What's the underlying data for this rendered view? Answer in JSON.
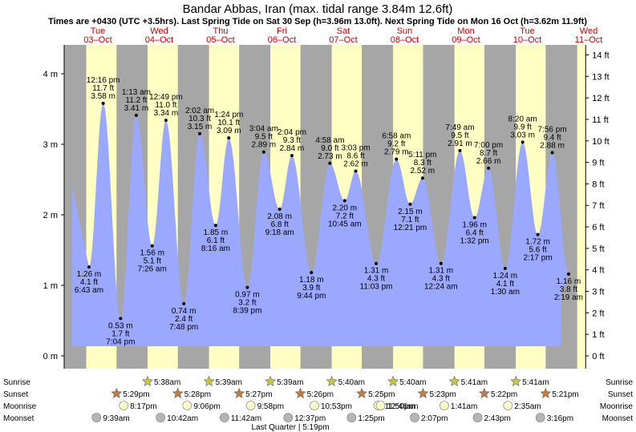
{
  "header": {
    "title": "Bandar Abbas, Iran (max. tidal range 3.84m 12.6ft)",
    "subtitle": "Times are +0430 (UTC +3.5hrs). Last Spring Tide on Sat 30 Sep (h=3.96m 13.0ft). Next Spring Tide on Mon 16 Oct (h=3.62m 11.9ft)"
  },
  "days": [
    {
      "name": "Tue",
      "date": "03–Oct"
    },
    {
      "name": "Wed",
      "date": "04–Oct"
    },
    {
      "name": "Thu",
      "date": "05–Oct"
    },
    {
      "name": "Fri",
      "date": "06–Oct"
    },
    {
      "name": "Sat",
      "date": "07–Oct"
    },
    {
      "name": "Sun",
      "date": "08–Oct"
    },
    {
      "name": "Mon",
      "date": "09–Oct"
    },
    {
      "name": "Tue",
      "date": "10–Oct"
    },
    {
      "name": "Wed",
      "date": "11–Oct"
    }
  ],
  "chart_data": {
    "type": "area",
    "title": "Bandar Abbas, Iran (max. tidal range 3.84m 12.6ft)",
    "xlabel": "",
    "ylabel": "",
    "y_left_unit": "m",
    "y_right_unit": "ft",
    "ylim_m": [
      -0.15,
      4.35
    ],
    "y_left_ticks": [
      "0 m",
      "1 m",
      "2 m",
      "3 m",
      "4 m"
    ],
    "y_right_ticks": [
      "0 ft",
      "1 ft",
      "2 ft",
      "3 ft",
      "4 ft",
      "5 ft",
      "6 ft",
      "7 ft",
      "8 ft",
      "9 ft",
      "10 ft",
      "11 ft",
      "12 ft",
      "13 ft",
      "14 ft"
    ],
    "start_height_m": 2.4,
    "end_height_m": 0.9,
    "tides": [
      {
        "day": 0,
        "time": "6:43 am",
        "h": 1.26,
        "m": "1.26 m",
        "ft": "4.1 ft"
      },
      {
        "day": 0,
        "time": "12:16 pm",
        "h": 3.58,
        "m": "3.58 m",
        "ft": "11.7 ft"
      },
      {
        "day": 0,
        "time": "7:04 pm",
        "h": 0.53,
        "m": "0.53 m",
        "ft": "1.7 ft"
      },
      {
        "day": 1,
        "time": "1:13 am",
        "h": 3.41,
        "m": "3.41 m",
        "ft": "11.2 ft"
      },
      {
        "day": 1,
        "time": "7:26 am",
        "h": 1.56,
        "m": "1.56 m",
        "ft": "5.1 ft"
      },
      {
        "day": 1,
        "time": "12:49 pm",
        "h": 3.34,
        "m": "3.34 m",
        "ft": "11.0 ft"
      },
      {
        "day": 1,
        "time": "7:48 pm",
        "h": 0.74,
        "m": "0.74 m",
        "ft": "2.4 ft"
      },
      {
        "day": 2,
        "time": "2:02 am",
        "h": 3.15,
        "m": "3.15 m",
        "ft": "10.3 ft"
      },
      {
        "day": 2,
        "time": "8:16 am",
        "h": 1.85,
        "m": "1.85 m",
        "ft": "6.1 ft"
      },
      {
        "day": 2,
        "time": "1:24 pm",
        "h": 3.09,
        "m": "3.09 m",
        "ft": "10.1 ft"
      },
      {
        "day": 2,
        "time": "8:39 pm",
        "h": 0.97,
        "m": "0.97 m",
        "ft": "3.2 ft"
      },
      {
        "day": 3,
        "time": "3:04 am",
        "h": 2.89,
        "m": "2.89 m",
        "ft": "9.5 ft"
      },
      {
        "day": 3,
        "time": "9:18 am",
        "h": 2.08,
        "m": "2.08 m",
        "ft": "6.8 ft"
      },
      {
        "day": 3,
        "time": "2:04 pm",
        "h": 2.84,
        "m": "2.84 m",
        "ft": "9.3 ft"
      },
      {
        "day": 3,
        "time": "9:44 pm",
        "h": 1.18,
        "m": "1.18 m",
        "ft": "3.9 ft"
      },
      {
        "day": 4,
        "time": "4:58 am",
        "h": 2.73,
        "m": "2.73 m",
        "ft": "9.0 ft"
      },
      {
        "day": 4,
        "time": "10:45 am",
        "h": 2.2,
        "m": "2.20 m",
        "ft": "7.2 ft"
      },
      {
        "day": 4,
        "time": "3:03 pm",
        "h": 2.62,
        "m": "2.62 m",
        "ft": "8.6 ft"
      },
      {
        "day": 4,
        "time": "11:03 pm",
        "h": 1.31,
        "m": "1.31 m",
        "ft": "4.3 ft"
      },
      {
        "day": 5,
        "time": "6:58 am",
        "h": 2.79,
        "m": "2.79 m",
        "ft": "9.2 ft"
      },
      {
        "day": 5,
        "time": "12:21 pm",
        "h": 2.15,
        "m": "2.15 m",
        "ft": "7.1 ft"
      },
      {
        "day": 5,
        "time": "5:11 pm",
        "h": 2.52,
        "m": "2.52 m",
        "ft": "8.3 ft"
      },
      {
        "day": 6,
        "time": "12:24 am",
        "h": 1.31,
        "m": "1.31 m",
        "ft": "4.3 ft"
      },
      {
        "day": 6,
        "time": "7:49 am",
        "h": 2.91,
        "m": "2.91 m",
        "ft": "9.5 ft"
      },
      {
        "day": 6,
        "time": "1:32 pm",
        "h": 1.96,
        "m": "1.96 m",
        "ft": "6.4 ft"
      },
      {
        "day": 6,
        "time": "7:00 pm",
        "h": 2.66,
        "m": "2.66 m",
        "ft": "8.7 ft"
      },
      {
        "day": 7,
        "time": "1:30 am",
        "h": 1.24,
        "m": "1.24 m",
        "ft": "4.1 ft"
      },
      {
        "day": 7,
        "time": "8:20 am",
        "h": 3.03,
        "m": "3.03 m",
        "ft": "9.9 ft"
      },
      {
        "day": 7,
        "time": "2:17 pm",
        "h": 1.72,
        "m": "1.72 m",
        "ft": "5.6 ft"
      },
      {
        "day": 7,
        "time": "7:56 pm",
        "h": 2.88,
        "m": "2.88 m",
        "ft": "9.4 ft"
      },
      {
        "day": 8,
        "time": "2:19 am",
        "h": 1.16,
        "m": "1.16 m",
        "ft": "3.8 ft"
      }
    ],
    "sunrise": [
      "",
      "5:38am",
      "5:39am",
      "5:39am",
      "5:40am",
      "5:40am",
      "5:41am",
      "5:41am"
    ],
    "sunset": [
      "5:29pm",
      "5:28pm",
      "5:27pm",
      "5:26pm",
      "5:25pm",
      "5:23pm",
      "5:22pm",
      "5:21pm"
    ],
    "moonrise": [
      "8:17pm",
      "9:06pm",
      "9:58pm",
      "10:53pm",
      "11:50pm",
      "12:46am",
      "1:41am",
      "2:35am"
    ],
    "moonset": [
      "9:39am",
      "10:42am",
      "11:42am",
      "12:37pm",
      "1:25pm",
      "2:07pm",
      "2:43pm",
      "3:16pm"
    ],
    "moon_phase": "Last Quarter | 5:19pm"
  },
  "row_labels": {
    "sunrise": "Sunrise",
    "sunset": "Sunset",
    "moonrise": "Moonrise",
    "moonset": "Moonset"
  },
  "colors": {
    "day": "#ffffc4",
    "night": "#a6a6a6",
    "water": "#9aa8ff",
    "day_label": "#cc0000",
    "sun_icon": "#c9c640",
    "sunset_icon": "#c77a3a",
    "moon_light": "#ffffcc",
    "moon_dark": "#b5b5b5"
  }
}
